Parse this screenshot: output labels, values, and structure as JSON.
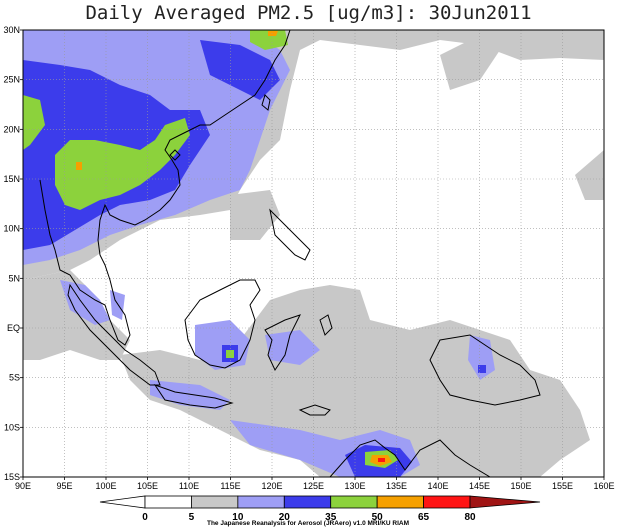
{
  "title": "Daily Averaged PM2.5 [ug/m3]: 30Jun2011",
  "map": {
    "lon_range": [
      90,
      160
    ],
    "lat_range": [
      -15,
      30
    ],
    "lon_labels": [
      "90E",
      "95E",
      "100E",
      "105E",
      "110E",
      "115E",
      "120E",
      "125E",
      "130E",
      "135E",
      "140E",
      "145E",
      "150E",
      "155E",
      "160E"
    ],
    "lat_labels": [
      "30N",
      "25N",
      "20N",
      "15N",
      "10N",
      "5N",
      "EQ",
      "5S",
      "10S",
      "15S"
    ],
    "grid": true
  },
  "colorbar": {
    "levels": [
      "0",
      "5",
      "10",
      "20",
      "35",
      "50",
      "65",
      "80"
    ],
    "colors": [
      "#ffffff",
      "#ffffff",
      "#c8c8c8",
      "#9e9ef5",
      "#3c3ceb",
      "#8cd23c",
      "#f5a000",
      "#ff1414",
      "#a01414"
    ]
  },
  "credit": "The Japanese Reanalysis for Aerosol (JRAero) v1.0 MRI/KU RIAM"
}
